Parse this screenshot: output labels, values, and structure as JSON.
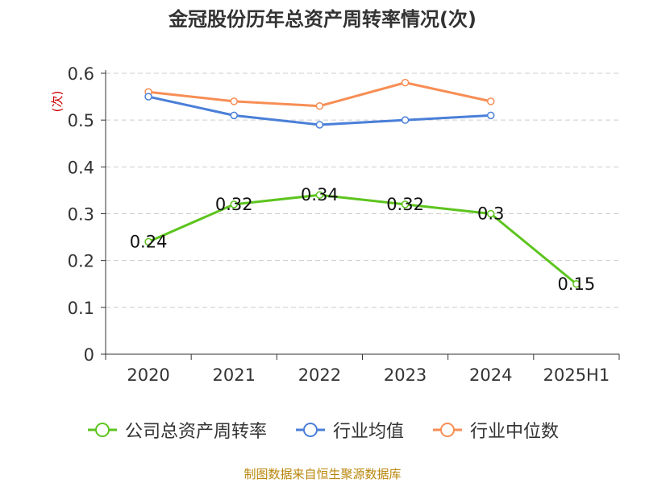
{
  "chart_data": {
    "type": "line",
    "title": "金冠股份历年总资产周转率情况(次)",
    "ylabel": "(次)",
    "categories": [
      "2020",
      "2021",
      "2022",
      "2023",
      "2024",
      "2025H1"
    ],
    "ylim": [
      0,
      0.6
    ],
    "yticks": [
      "0",
      "0.1",
      "0.2",
      "0.3",
      "0.4",
      "0.5",
      "0.6"
    ],
    "grid": true,
    "legend_position": "bottom",
    "series": [
      {
        "name": "公司总资产周转率",
        "color": "#5dc41f",
        "values": [
          0.24,
          0.32,
          0.34,
          0.32,
          0.3,
          0.15
        ],
        "labels": [
          "0.24",
          "0.32",
          "0.34",
          "0.32",
          "0.3",
          "0.15"
        ]
      },
      {
        "name": "行业均值",
        "color": "#4a7fd8",
        "values": [
          0.55,
          0.51,
          0.49,
          0.5,
          0.51,
          null
        ]
      },
      {
        "name": "行业中位数",
        "color": "#f78e55",
        "values": [
          0.56,
          0.54,
          0.53,
          0.58,
          0.54,
          null
        ]
      }
    ]
  },
  "source": "制图数据来自恒生聚源数据库"
}
